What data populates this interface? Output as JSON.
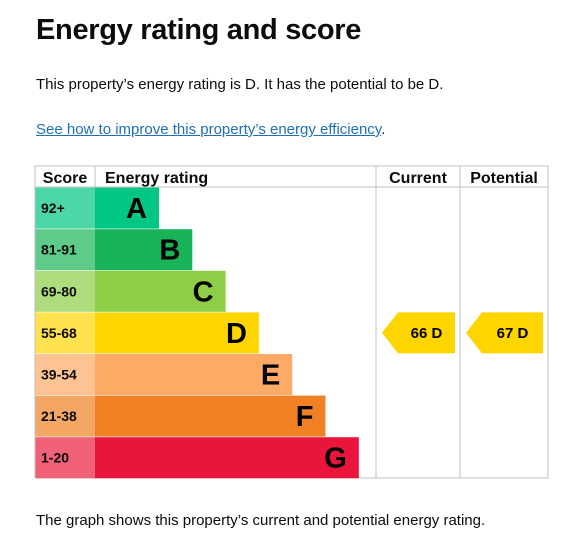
{
  "page": {
    "title": "Energy rating and score",
    "summary": "This property’s energy rating is D. It has the potential to be D.",
    "improve_link": "See how to improve this property’s energy efficiency",
    "improve_link_suffix": ".",
    "footer": "The graph shows this property’s current and potential energy rating."
  },
  "chart_data": {
    "type": "bar",
    "headers": {
      "score": "Score",
      "rating": "Energy rating",
      "current": "Current",
      "potential": "Potential"
    },
    "bands": [
      {
        "letter": "A",
        "score_range": "92+",
        "color": "#00c781",
        "score_color": "#4dd7a7"
      },
      {
        "letter": "B",
        "score_range": "81-91",
        "color": "#19b459",
        "score_color": "#5ecb8b"
      },
      {
        "letter": "C",
        "score_range": "69-80",
        "color": "#8dce46",
        "score_color": "#afdd7e"
      },
      {
        "letter": "D",
        "score_range": "55-68",
        "color": "#ffd500",
        "score_color": "#ffe24d"
      },
      {
        "letter": "E",
        "score_range": "39-54",
        "color": "#fcaa65",
        "score_color": "#fdc393"
      },
      {
        "letter": "F",
        "score_range": "21-38",
        "color": "#ef8023",
        "score_color": "#f4a665"
      },
      {
        "letter": "G",
        "score_range": "1-20",
        "color": "#e9153b",
        "score_color": "#f06076"
      }
    ],
    "current": {
      "value": 66,
      "band": "D",
      "label": "66  D"
    },
    "potential": {
      "value": 67,
      "band": "D",
      "label": "67  D"
    }
  }
}
